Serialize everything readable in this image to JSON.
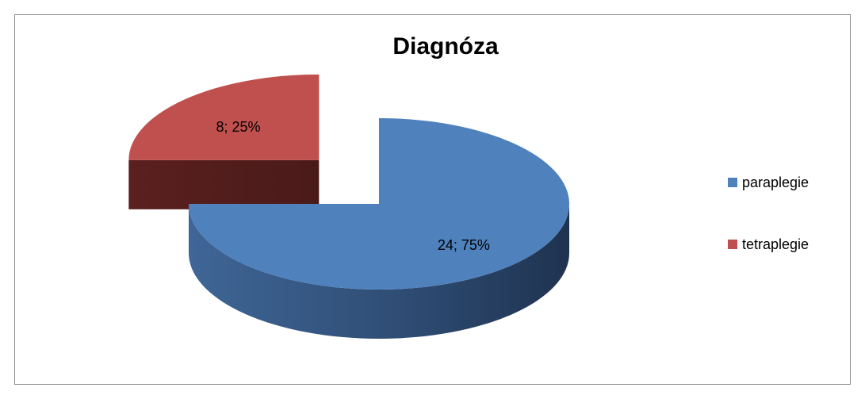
{
  "chart_data": {
    "type": "pie",
    "title": "Diagnóza",
    "categories": [
      "paraplegie",
      "tetraplegie"
    ],
    "values": [
      24,
      8
    ],
    "value_labels": [
      "24; 75%",
      "8; 25%"
    ],
    "colors": [
      "#4f81bd",
      "#c0504d"
    ],
    "legend": "right"
  }
}
